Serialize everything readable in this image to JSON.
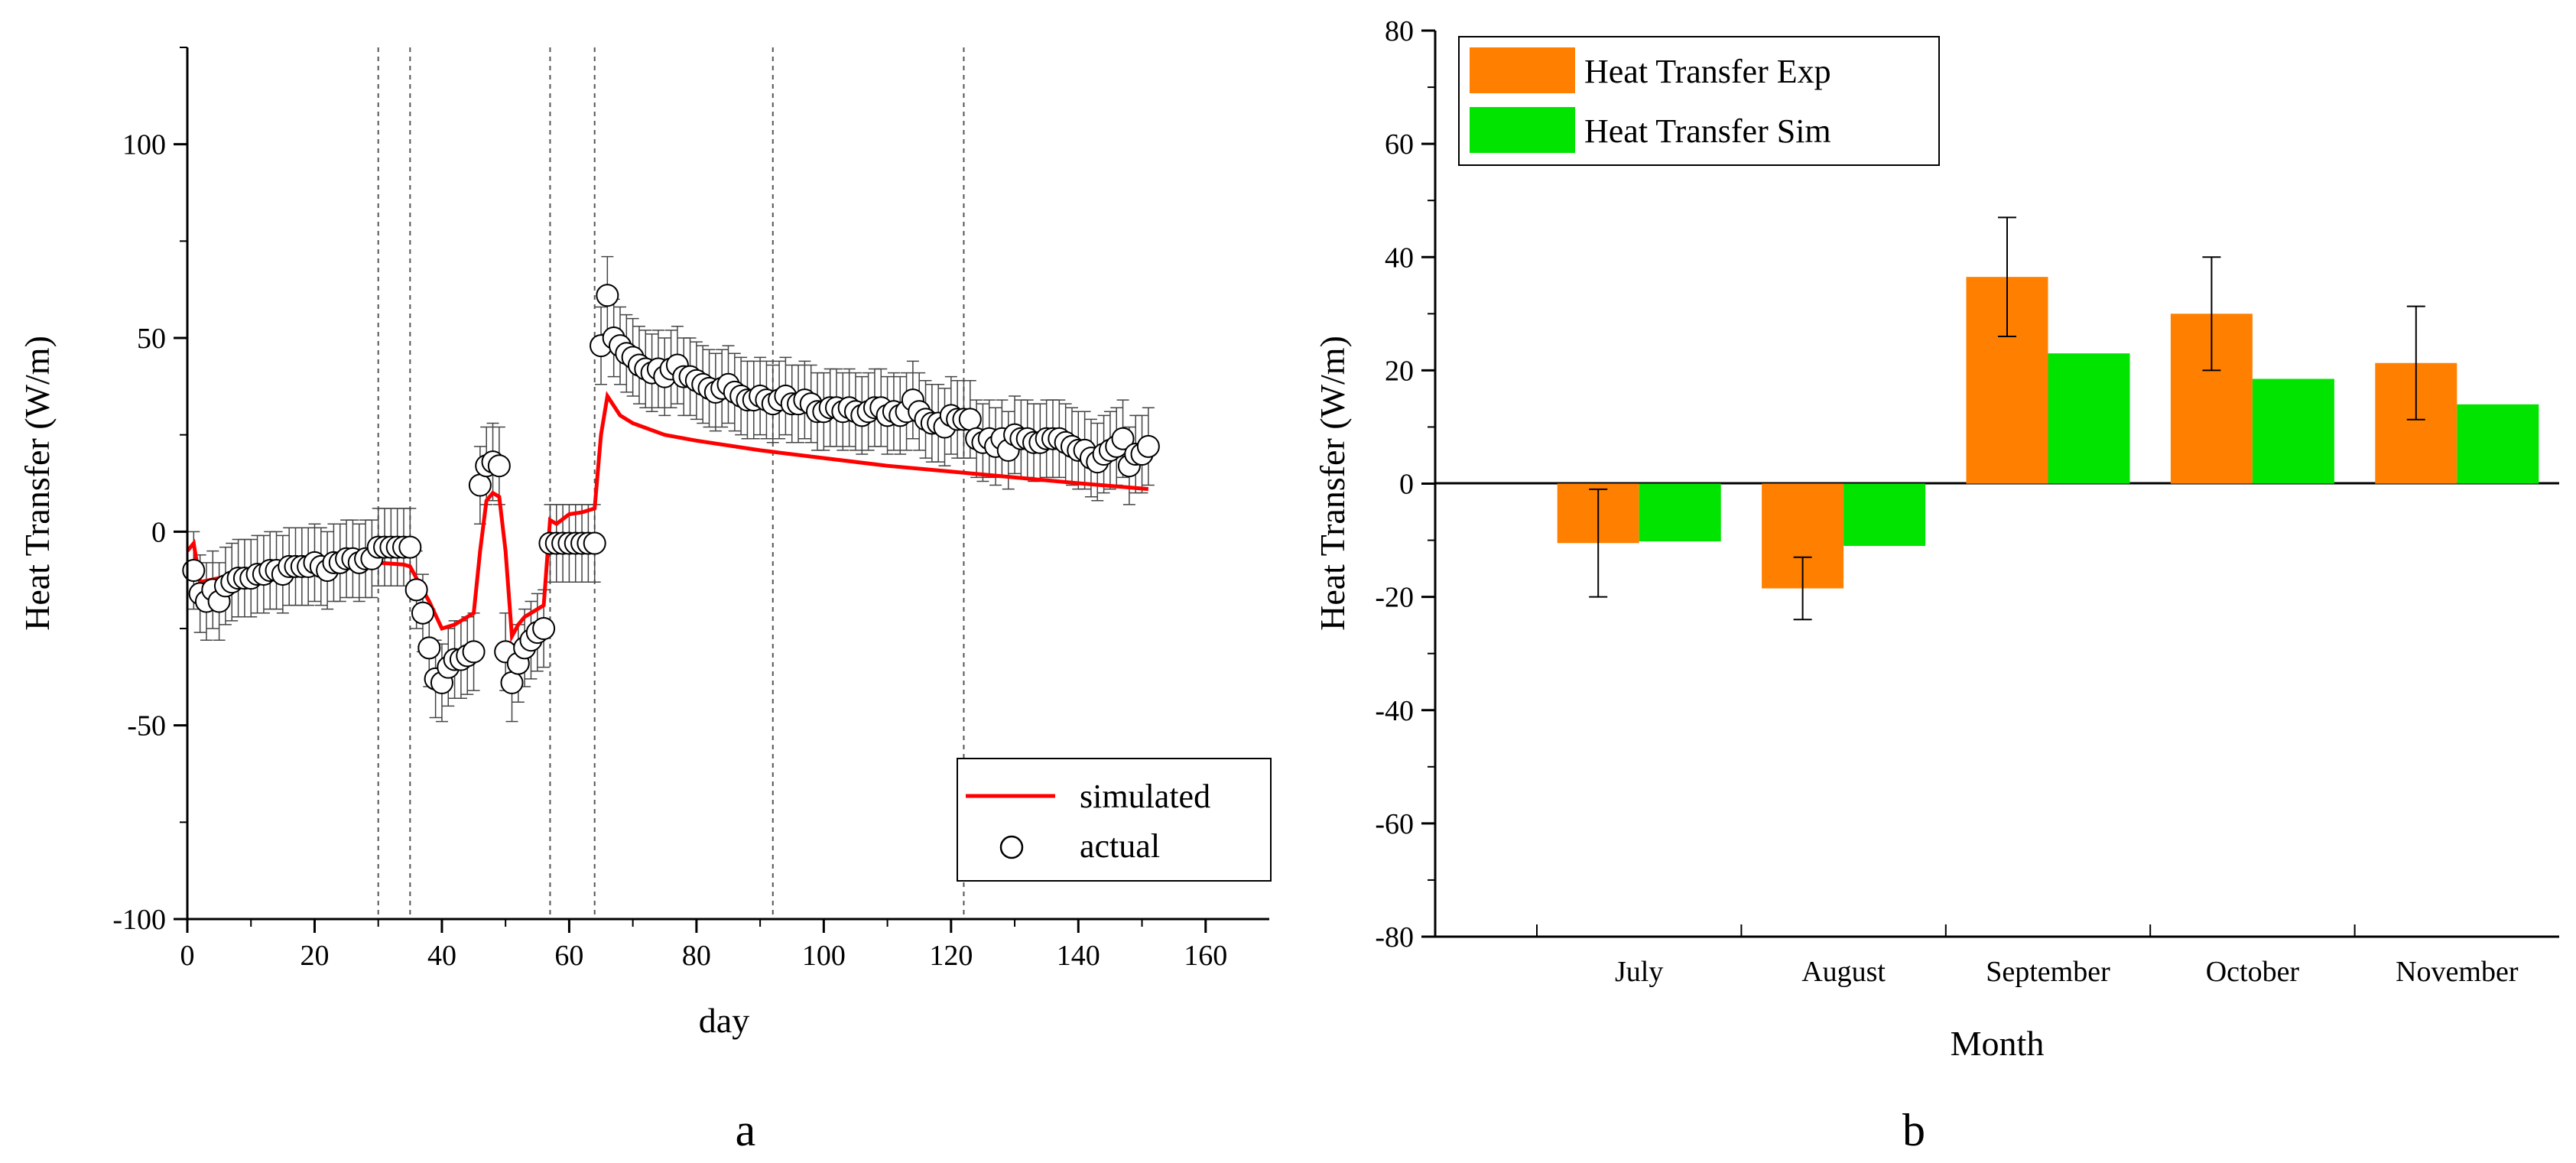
{
  "chart_data": [
    {
      "type": "scatter+line",
      "panel_label": "a",
      "xlabel": "day",
      "ylabel": "Heat Transfer (W/m)",
      "xlim": [
        0,
        170
      ],
      "ylim": [
        -100,
        125
      ],
      "xticks": [
        0,
        20,
        40,
        60,
        80,
        100,
        120,
        140,
        160
      ],
      "yticks": [
        -100,
        -50,
        0,
        50,
        100
      ],
      "vlines": [
        30,
        35,
        57,
        64,
        92,
        122
      ],
      "legend": {
        "position": "bottom-right",
        "entries": [
          {
            "label": "simulated",
            "marker": "line",
            "color": "#ff0000"
          },
          {
            "label": "actual",
            "marker": "open-circle",
            "color": "#000000"
          }
        ]
      },
      "series": [
        {
          "name": "simulated",
          "style": "line",
          "color": "#ff0000",
          "x": [
            0,
            1,
            2,
            5,
            10,
            20,
            25,
            29,
            30,
            34,
            35,
            38,
            40,
            42,
            45,
            46,
            47,
            48,
            49,
            50,
            51,
            52,
            53,
            55,
            56,
            57,
            58,
            60,
            62,
            63,
            64,
            65,
            66,
            68,
            70,
            75,
            80,
            90,
            100,
            110,
            120,
            130,
            140,
            151
          ],
          "values": [
            -5,
            -3,
            -13,
            -12,
            -10,
            -9,
            -8.5,
            -8,
            -8,
            -8.5,
            -9,
            -18,
            -25,
            -24,
            -21,
            -5,
            8,
            10,
            9,
            -5,
            -27,
            -24,
            -22,
            -20,
            -19,
            3,
            2,
            4.5,
            5,
            5.5,
            6,
            25,
            35,
            30,
            28,
            25,
            23.5,
            21,
            19,
            17,
            15.5,
            14,
            12.5,
            11
          ]
        },
        {
          "name": "actual",
          "style": "open-circle",
          "error": 10,
          "x": [
            1,
            2,
            3,
            4,
            5,
            6,
            7,
            8,
            9,
            10,
            11,
            12,
            13,
            14,
            15,
            16,
            17,
            18,
            19,
            20,
            21,
            22,
            23,
            24,
            25,
            26,
            27,
            28,
            29,
            30,
            31,
            32,
            33,
            34,
            35,
            36,
            37,
            38,
            39,
            40,
            41,
            42,
            43,
            44,
            45,
            46,
            47,
            48,
            49,
            50,
            51,
            52,
            53,
            54,
            55,
            56,
            57,
            58,
            59,
            60,
            61,
            62,
            63,
            64,
            65,
            66,
            67,
            68,
            69,
            70,
            71,
            72,
            73,
            74,
            75,
            76,
            77,
            78,
            79,
            80,
            81,
            82,
            83,
            84,
            85,
            86,
            87,
            88,
            89,
            90,
            91,
            92,
            93,
            94,
            95,
            96,
            97,
            98,
            99,
            100,
            101,
            102,
            103,
            104,
            105,
            106,
            107,
            108,
            109,
            110,
            111,
            112,
            113,
            114,
            115,
            116,
            117,
            118,
            119,
            120,
            121,
            122,
            123,
            124,
            125,
            126,
            127,
            128,
            129,
            130,
            131,
            132,
            133,
            134,
            135,
            136,
            137,
            138,
            139,
            140,
            141,
            142,
            143,
            144,
            145,
            146,
            147,
            148,
            149,
            150,
            151
          ],
          "values": [
            -10,
            -16,
            -18,
            -15,
            -18,
            -14,
            -13,
            -12,
            -12,
            -12,
            -11,
            -11,
            -10,
            -10,
            -11,
            -9,
            -9,
            -9,
            -9,
            -8,
            -9,
            -10,
            -8,
            -8,
            -7,
            -7,
            -8,
            -7,
            -7,
            -4,
            -4,
            -4,
            -4,
            -4,
            -4,
            -15,
            -21,
            -30,
            -38,
            -39,
            -35,
            -33,
            -33,
            -32,
            -31,
            12,
            17,
            18,
            17,
            -31,
            -39,
            -34,
            -30,
            -28,
            -26,
            -25,
            -3,
            -3,
            -3,
            -3,
            -3,
            -3,
            -3,
            -3,
            48,
            61,
            50,
            48,
            46,
            45,
            43,
            42,
            41,
            42,
            40,
            42,
            43,
            40,
            40,
            39,
            38,
            37,
            36,
            37,
            38,
            36,
            35,
            34,
            34,
            35,
            34,
            33,
            34,
            35,
            33,
            33,
            34,
            33,
            31,
            31,
            32,
            32,
            31,
            32,
            31,
            30,
            31,
            32,
            32,
            30,
            31,
            30,
            31,
            34,
            31,
            29,
            28,
            28,
            27,
            30,
            29,
            29,
            29,
            24,
            23,
            24,
            22,
            24,
            21,
            25,
            24,
            24,
            23,
            23,
            24,
            24,
            24,
            23,
            22,
            21,
            21,
            19,
            18,
            20,
            21,
            22,
            24,
            17,
            20,
            20,
            22
          ]
        }
      ]
    },
    {
      "type": "bar",
      "panel_label": "b",
      "xlabel": "Month",
      "ylabel": "Heat Transfer (W/m)",
      "ylim": [
        -80,
        80
      ],
      "yticks": [
        -80,
        -60,
        -40,
        -20,
        0,
        20,
        40,
        60,
        80
      ],
      "categories": [
        "July",
        "August",
        "September",
        "October",
        "November"
      ],
      "legend": {
        "position": "top-left"
      },
      "series": [
        {
          "name": "Heat Transfer Exp",
          "color": "#ff8000",
          "values": [
            -10.5,
            -18.5,
            36.5,
            30,
            21.3
          ],
          "errors": [
            9.5,
            5.5,
            10.5,
            10,
            10
          ]
        },
        {
          "name": "Heat Transfer Sim",
          "color": "#00e400",
          "values": [
            -10.2,
            -11,
            23,
            18.5,
            14
          ]
        }
      ]
    }
  ]
}
